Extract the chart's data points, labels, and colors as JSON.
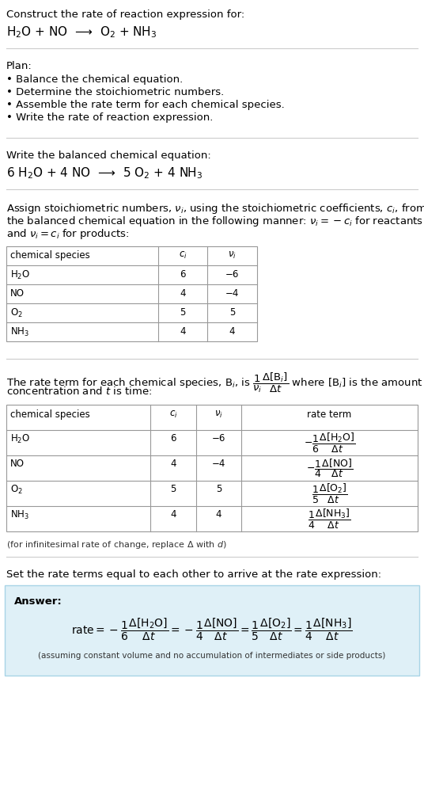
{
  "title_line1": "Construct the rate of reaction expression for:",
  "title_line2": "H$_2$O + NO  ⟶  O$_2$ + NH$_3$",
  "plan_header": "Plan:",
  "plan_items": [
    "• Balance the chemical equation.",
    "• Determine the stoichiometric numbers.",
    "• Assemble the rate term for each chemical species.",
    "• Write the rate of reaction expression."
  ],
  "balanced_header": "Write the balanced chemical equation:",
  "balanced_eq": "6 H$_2$O + 4 NO  ⟶  5 O$_2$ + 4 NH$_3$",
  "stoich_intro_lines": [
    "Assign stoichiometric numbers, $\\nu_i$, using the stoichiometric coefficients, $c_i$, from",
    "the balanced chemical equation in the following manner: $\\nu_i = -c_i$ for reactants",
    "and $\\nu_i = c_i$ for products:"
  ],
  "table1_headers": [
    "chemical species",
    "$c_i$",
    "$\\nu_i$"
  ],
  "table1_rows": [
    [
      "H$_2$O",
      "6",
      "−6"
    ],
    [
      "NO",
      "4",
      "−4"
    ],
    [
      "O$_2$",
      "5",
      "5"
    ],
    [
      "NH$_3$",
      "4",
      "4"
    ]
  ],
  "rate_intro_lines": [
    "The rate term for each chemical species, B$_i$, is $\\dfrac{1}{\\nu_i}\\dfrac{\\Delta[\\mathrm{B}_i]}{\\Delta t}$ where [B$_i$] is the amount",
    "concentration and $t$ is time:"
  ],
  "table2_headers": [
    "chemical species",
    "$c_i$",
    "$\\nu_i$",
    "rate term"
  ],
  "table2_rows": [
    [
      "H$_2$O",
      "6",
      "−6",
      "$-\\dfrac{1}{6}\\dfrac{\\Delta[\\mathrm{H_2O}]}{\\Delta t}$"
    ],
    [
      "NO",
      "4",
      "−4",
      "$-\\dfrac{1}{4}\\dfrac{\\Delta[\\mathrm{NO}]}{\\Delta t}$"
    ],
    [
      "O$_2$",
      "5",
      "5",
      "$\\dfrac{1}{5}\\dfrac{\\Delta[\\mathrm{O_2}]}{\\Delta t}$"
    ],
    [
      "NH$_3$",
      "4",
      "4",
      "$\\dfrac{1}{4}\\dfrac{\\Delta[\\mathrm{NH_3}]}{\\Delta t}$"
    ]
  ],
  "infinitesimal_note": "(for infinitesimal rate of change, replace Δ with $d$)",
  "set_equal_text": "Set the rate terms equal to each other to arrive at the rate expression:",
  "answer_bg": "#dff0f7",
  "answer_border": "#a8d4e6",
  "answer_label": "Answer:",
  "answer_rate_expr": "$\\mathrm{rate} = -\\dfrac{1}{6}\\dfrac{\\Delta[\\mathrm{H_2O}]}{\\Delta t} = -\\dfrac{1}{4}\\dfrac{\\Delta[\\mathrm{NO}]}{\\Delta t} = \\dfrac{1}{5}\\dfrac{\\Delta[\\mathrm{O_2}]}{\\Delta t} = \\dfrac{1}{4}\\dfrac{\\Delta[\\mathrm{NH_3}]}{\\Delta t}$",
  "answer_footnote": "(assuming constant volume and no accumulation of intermediates or side products)",
  "bg_color": "#ffffff",
  "sep_color": "#cccccc",
  "table_color": "#999999",
  "fs": 9.5,
  "fs_small": 8.5
}
